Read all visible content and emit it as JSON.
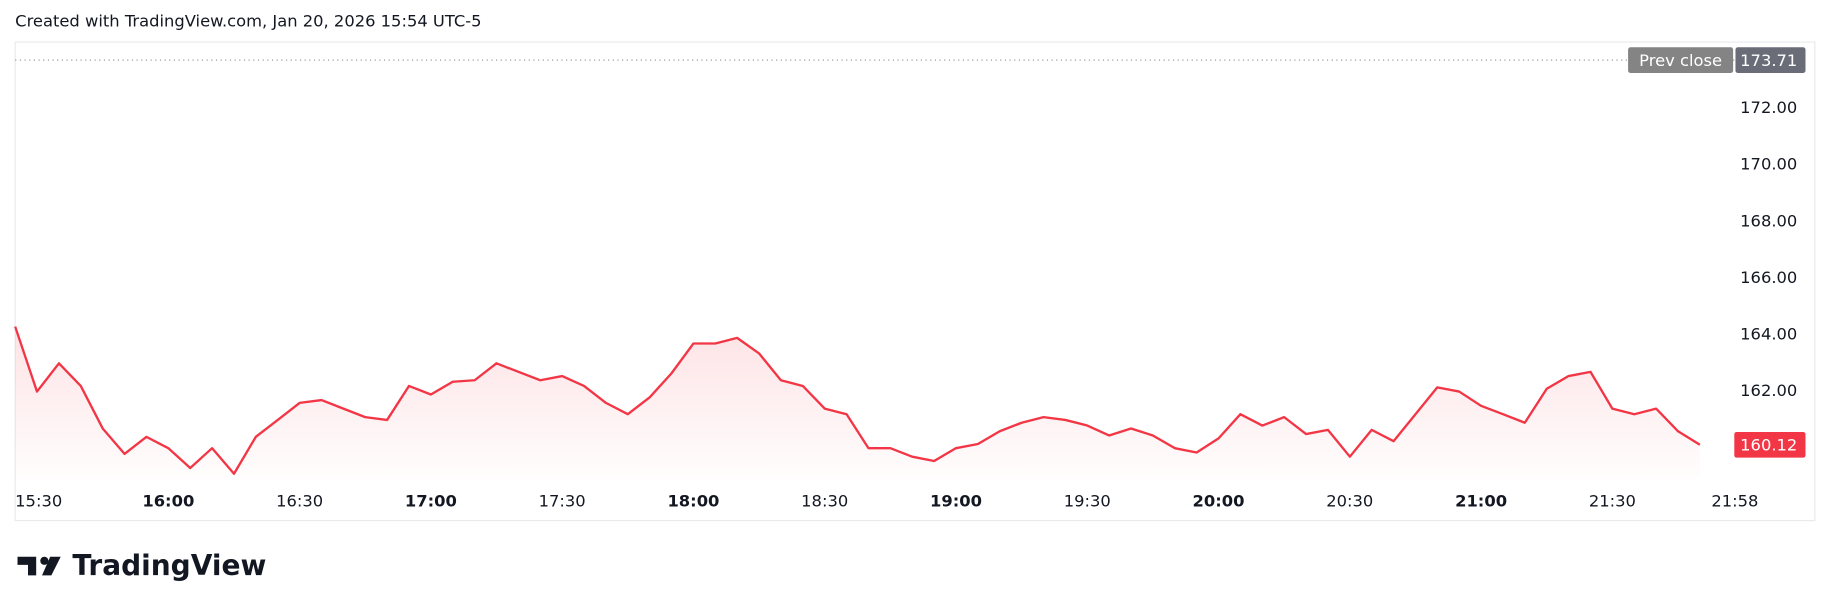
{
  "header": {
    "text": "Created with TradingView.com, Jan 20, 2026 15:54 UTC-5"
  },
  "chart_data": {
    "type": "line",
    "x": [
      "15:25",
      "15:30",
      "15:35",
      "15:40",
      "15:45",
      "15:50",
      "15:55",
      "16:00",
      "16:05",
      "16:10",
      "16:15",
      "16:20",
      "16:25",
      "16:30",
      "16:35",
      "16:40",
      "16:45",
      "16:50",
      "16:55",
      "17:00",
      "17:05",
      "17:10",
      "17:15",
      "17:20",
      "17:25",
      "17:30",
      "17:35",
      "17:40",
      "17:45",
      "17:50",
      "17:55",
      "18:00",
      "18:05",
      "18:10",
      "18:15",
      "18:20",
      "18:25",
      "18:30",
      "18:35",
      "18:40",
      "18:45",
      "18:50",
      "18:55",
      "19:00",
      "19:05",
      "19:10",
      "19:15",
      "19:20",
      "19:25",
      "19:30",
      "19:35",
      "19:40",
      "19:45",
      "19:50",
      "19:55",
      "20:00",
      "20:05",
      "20:10",
      "20:15",
      "20:20",
      "20:25",
      "20:30",
      "20:35",
      "20:40",
      "20:45",
      "20:50",
      "20:55",
      "21:00",
      "21:05",
      "21:10",
      "21:15",
      "21:20",
      "21:25",
      "21:30",
      "21:35",
      "21:40",
      "21:45",
      "21:50"
    ],
    "values": [
      164.3,
      162.0,
      163.0,
      162.2,
      160.7,
      159.8,
      160.4,
      160.0,
      159.3,
      160.0,
      159.1,
      160.4,
      161.0,
      161.6,
      161.7,
      161.4,
      161.1,
      161.0,
      162.2,
      161.9,
      162.35,
      162.4,
      163.0,
      162.7,
      162.4,
      162.55,
      162.2,
      161.6,
      161.2,
      161.8,
      162.65,
      163.7,
      163.7,
      163.9,
      163.35,
      162.4,
      162.2,
      161.4,
      161.2,
      160.0,
      160.0,
      159.7,
      159.55,
      160.0,
      160.15,
      160.6,
      160.9,
      161.1,
      161.0,
      160.8,
      160.45,
      160.7,
      160.45,
      160.0,
      159.85,
      160.35,
      161.2,
      160.8,
      161.1,
      160.5,
      160.65,
      159.7,
      160.65,
      160.25,
      161.2,
      162.15,
      162.0,
      161.5,
      161.2,
      160.9,
      162.1,
      162.55,
      162.7,
      161.4,
      161.2,
      161.4,
      160.6,
      160.12
    ],
    "color": "#f23645",
    "xlim": [
      "15:25",
      "22:00"
    ],
    "xticks": [
      "15:30",
      "16:00",
      "16:30",
      "17:00",
      "17:30",
      "18:00",
      "18:30",
      "19:00",
      "19:30",
      "20:00",
      "20:30",
      "21:00",
      "21:30",
      "21:58"
    ],
    "ylim": [
      158.93,
      174.35
    ],
    "yticks": [
      {
        "value": 162,
        "label": "162.00"
      },
      {
        "value": 164,
        "label": "164.00"
      },
      {
        "value": 166,
        "label": "166.00"
      },
      {
        "value": 168,
        "label": "168.00"
      },
      {
        "value": 170,
        "label": "170.00"
      },
      {
        "value": 172,
        "label": "172.00"
      }
    ],
    "prev_close": {
      "label": "Prev close",
      "value": 173.71,
      "value_label": "173.71"
    },
    "last_price": {
      "value": 160.12,
      "value_label": "160.12"
    }
  },
  "footer": {
    "brand": "TradingView"
  }
}
